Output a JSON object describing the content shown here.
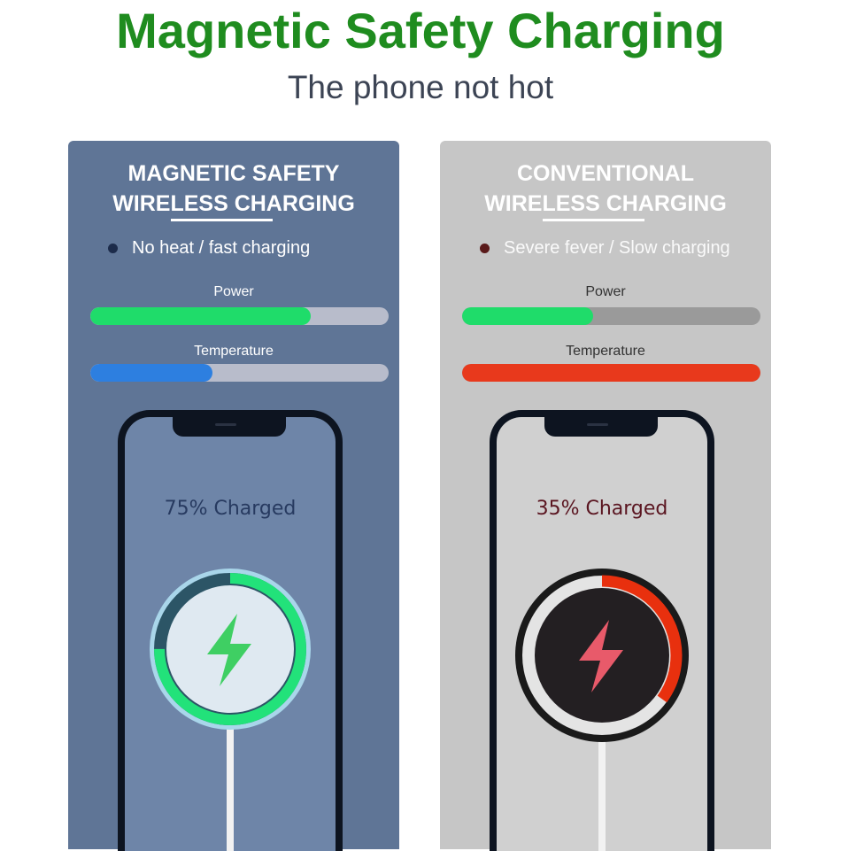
{
  "header": {
    "title": "Magnetic Safety Charging",
    "subtitle": "The phone not hot"
  },
  "panels": [
    {
      "heading_line1": "MAGNETIC SAFETY",
      "heading_line2": "WIRELESS CHARGING",
      "bullet": "No heat / fast charging",
      "power_label": "Power",
      "power_percent": 74,
      "temperature_label": "Temperature",
      "temperature_percent": 41,
      "charge_text": "75% Charged",
      "ring_percent": 75,
      "colors": {
        "panel": "#5f7596",
        "power": "#1fdc6a",
        "temperature": "#2d7fe0",
        "track": "#b8bccb",
        "bullet_dot": "#1c2b4a",
        "screen": "#6e85a8",
        "charge_text": "#273a60",
        "ring": "#22e27a",
        "pad": "#dfe9f1",
        "bolt": "#3fcf63"
      }
    },
    {
      "heading_line1": "CONVENTIONAL",
      "heading_line2": "WIRELESS CHARGING",
      "bullet": "Severe fever / Slow charging",
      "power_label": "Power",
      "power_percent": 44,
      "temperature_label": "Temperature",
      "temperature_percent": 100,
      "charge_text": "35% Charged",
      "ring_percent": 35,
      "colors": {
        "panel": "#c6c6c6",
        "power": "#1fdc6a",
        "temperature": "#e8391c",
        "track": "#9a9a9a",
        "bullet_dot": "#5a1a1a",
        "screen": "#d0d0d0",
        "charge_text": "#5a1520",
        "ring": "#e8300e",
        "pad": "#231f22",
        "bolt": "#e85a6a"
      }
    }
  ]
}
